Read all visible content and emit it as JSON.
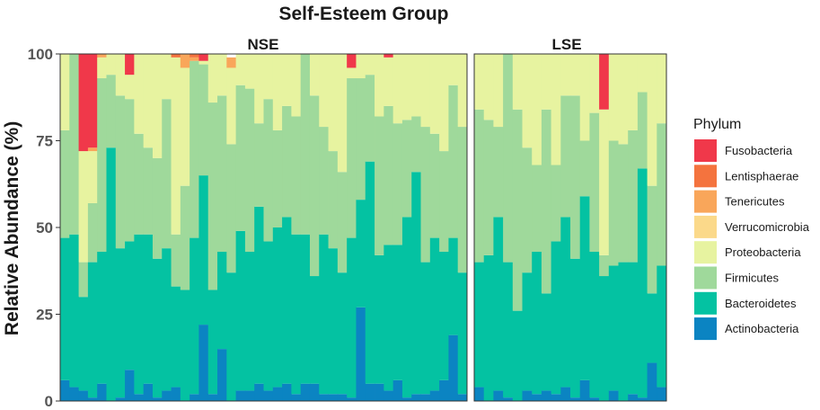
{
  "chart_data": {
    "type": "bar",
    "stacked": true,
    "title": "Self-Esteem Group",
    "ylabel": "Relative Abundance (%)",
    "xlabel": "",
    "ylim": [
      0,
      100
    ],
    "yticks": [
      0,
      25,
      50,
      75,
      100
    ],
    "grid": false,
    "legend_position": "right",
    "legend": {
      "title": "Phylum",
      "entries": [
        {
          "name": "Fusobacteria",
          "color": "#F0384A"
        },
        {
          "name": "Lentisphaerae",
          "color": "#F4733E"
        },
        {
          "name": "Tenericutes",
          "color": "#F9A65A"
        },
        {
          "name": "Verrucomicrobia",
          "color": "#FBD98A"
        },
        {
          "name": "Proteobacteria",
          "color": "#E7F3A0"
        },
        {
          "name": "Firmicutes",
          "color": "#9FD99B"
        },
        {
          "name": "Bacteroidetes",
          "color": "#04C2A2"
        },
        {
          "name": "Actinobacteria",
          "color": "#0B84C2"
        }
      ]
    },
    "stack_order_bottom_to_top": [
      "Actinobacteria",
      "Bacteroidetes",
      "Firmicutes",
      "Proteobacteria",
      "Verrucomicrobia",
      "Tenericutes",
      "Lentisphaerae",
      "Fusobacteria"
    ],
    "panels": [
      {
        "name": "NSE",
        "samples": [
          {
            "Actinobacteria": 6,
            "Bacteroidetes": 41,
            "Firmicutes": 31,
            "Proteobacteria": 22
          },
          {
            "Actinobacteria": 4,
            "Bacteroidetes": 44,
            "Firmicutes": 52,
            "Proteobacteria": 0
          },
          {
            "Actinobacteria": 3,
            "Bacteroidetes": 27,
            "Firmicutes": 10,
            "Proteobacteria": 32,
            "Fusobacteria": 28
          },
          {
            "Actinobacteria": 1,
            "Bacteroidetes": 39,
            "Firmicutes": 17,
            "Proteobacteria": 15,
            "Fusobacteria": 27,
            "Tenericutes": 1
          },
          {
            "Actinobacteria": 5,
            "Bacteroidetes": 38,
            "Firmicutes": 50,
            "Proteobacteria": 6,
            "Tenericutes": 1
          },
          {
            "Actinobacteria": 0,
            "Bacteroidetes": 73,
            "Firmicutes": 21,
            "Proteobacteria": 6
          },
          {
            "Actinobacteria": 1,
            "Bacteroidetes": 43,
            "Firmicutes": 44,
            "Proteobacteria": 12
          },
          {
            "Actinobacteria": 9,
            "Bacteroidetes": 37,
            "Firmicutes": 41,
            "Proteobacteria": 7,
            "Fusobacteria": 6
          },
          {
            "Actinobacteria": 2,
            "Bacteroidetes": 46,
            "Firmicutes": 29,
            "Proteobacteria": 23
          },
          {
            "Actinobacteria": 5,
            "Bacteroidetes": 43,
            "Firmicutes": 25,
            "Proteobacteria": 27
          },
          {
            "Actinobacteria": 1,
            "Bacteroidetes": 40,
            "Firmicutes": 29,
            "Proteobacteria": 30
          },
          {
            "Actinobacteria": 3,
            "Bacteroidetes": 41,
            "Firmicutes": 43,
            "Proteobacteria": 13
          },
          {
            "Actinobacteria": 4,
            "Bacteroidetes": 29,
            "Firmicutes": 15,
            "Proteobacteria": 51,
            "Lentisphaerae": 1
          },
          {
            "Actinobacteria": 0,
            "Bacteroidetes": 32,
            "Firmicutes": 30,
            "Proteobacteria": 34,
            "Tenericutes": 4
          },
          {
            "Actinobacteria": 2,
            "Bacteroidetes": 45,
            "Firmicutes": 51,
            "Proteobacteria": 0,
            "Tenericutes": 1,
            "Lentisphaerae": 1
          },
          {
            "Actinobacteria": 22,
            "Bacteroidetes": 43,
            "Firmicutes": 32,
            "Proteobacteria": 1,
            "Fusobacteria": 2
          },
          {
            "Actinobacteria": 2,
            "Bacteroidetes": 30,
            "Firmicutes": 54,
            "Proteobacteria": 14
          },
          {
            "Actinobacteria": 15,
            "Bacteroidetes": 28,
            "Firmicutes": 45,
            "Proteobacteria": 12
          },
          {
            "Actinobacteria": 0,
            "Bacteroidetes": 37,
            "Firmicutes": 37,
            "Proteobacteria": 22,
            "Tenericutes": 3
          },
          {
            "Actinobacteria": 3,
            "Bacteroidetes": 46,
            "Firmicutes": 42,
            "Proteobacteria": 9
          },
          {
            "Actinobacteria": 3,
            "Bacteroidetes": 40,
            "Firmicutes": 47,
            "Proteobacteria": 10
          },
          {
            "Actinobacteria": 5,
            "Bacteroidetes": 51,
            "Firmicutes": 24,
            "Proteobacteria": 20
          },
          {
            "Actinobacteria": 3,
            "Bacteroidetes": 43,
            "Firmicutes": 41,
            "Proteobacteria": 13
          },
          {
            "Actinobacteria": 4,
            "Bacteroidetes": 46,
            "Firmicutes": 28,
            "Proteobacteria": 22
          },
          {
            "Actinobacteria": 5,
            "Bacteroidetes": 48,
            "Firmicutes": 32,
            "Proteobacteria": 15
          },
          {
            "Actinobacteria": 2,
            "Bacteroidetes": 46,
            "Firmicutes": 34,
            "Proteobacteria": 18
          },
          {
            "Actinobacteria": 5,
            "Bacteroidetes": 43,
            "Firmicutes": 52,
            "Proteobacteria": 0
          },
          {
            "Actinobacteria": 5,
            "Bacteroidetes": 31,
            "Firmicutes": 52,
            "Proteobacteria": 12
          },
          {
            "Actinobacteria": 2,
            "Bacteroidetes": 46,
            "Firmicutes": 31,
            "Proteobacteria": 21
          },
          {
            "Actinobacteria": 2,
            "Bacteroidetes": 42,
            "Firmicutes": 28,
            "Proteobacteria": 28
          },
          {
            "Actinobacteria": 2,
            "Bacteroidetes": 35,
            "Firmicutes": 29,
            "Proteobacteria": 34
          },
          {
            "Actinobacteria": 1,
            "Bacteroidetes": 46,
            "Firmicutes": 46,
            "Proteobacteria": 3,
            "Fusobacteria": 4
          },
          {
            "Actinobacteria": 27,
            "Bacteroidetes": 31,
            "Firmicutes": 35,
            "Proteobacteria": 7
          },
          {
            "Actinobacteria": 5,
            "Bacteroidetes": 64,
            "Firmicutes": 25,
            "Proteobacteria": 6
          },
          {
            "Actinobacteria": 5,
            "Bacteroidetes": 37,
            "Firmicutes": 40,
            "Proteobacteria": 18
          },
          {
            "Actinobacteria": 3,
            "Bacteroidetes": 42,
            "Firmicutes": 40,
            "Proteobacteria": 14,
            "Fusobacteria": 1
          },
          {
            "Actinobacteria": 6,
            "Bacteroidetes": 39,
            "Firmicutes": 35,
            "Proteobacteria": 20
          },
          {
            "Actinobacteria": 1,
            "Bacteroidetes": 52,
            "Firmicutes": 28,
            "Proteobacteria": 19
          },
          {
            "Actinobacteria": 2,
            "Bacteroidetes": 64,
            "Firmicutes": 16,
            "Proteobacteria": 18
          },
          {
            "Actinobacteria": 2,
            "Bacteroidetes": 38,
            "Firmicutes": 39,
            "Proteobacteria": 21
          },
          {
            "Actinobacteria": 3,
            "Bacteroidetes": 44,
            "Firmicutes": 30,
            "Proteobacteria": 23
          },
          {
            "Actinobacteria": 6,
            "Bacteroidetes": 37,
            "Firmicutes": 29,
            "Proteobacteria": 28
          },
          {
            "Actinobacteria": 19,
            "Bacteroidetes": 28,
            "Firmicutes": 44,
            "Proteobacteria": 9
          },
          {
            "Actinobacteria": 2,
            "Bacteroidetes": 35,
            "Firmicutes": 42,
            "Proteobacteria": 21
          }
        ]
      },
      {
        "name": "LSE",
        "samples": [
          {
            "Actinobacteria": 4,
            "Bacteroidetes": 36,
            "Firmicutes": 44,
            "Proteobacteria": 16
          },
          {
            "Actinobacteria": 0,
            "Bacteroidetes": 42,
            "Firmicutes": 39,
            "Proteobacteria": 19
          },
          {
            "Actinobacteria": 3,
            "Bacteroidetes": 50,
            "Firmicutes": 26,
            "Proteobacteria": 21
          },
          {
            "Actinobacteria": 1,
            "Bacteroidetes": 39,
            "Firmicutes": 60,
            "Proteobacteria": 0
          },
          {
            "Actinobacteria": 0,
            "Bacteroidetes": 26,
            "Firmicutes": 58,
            "Proteobacteria": 16
          },
          {
            "Actinobacteria": 3,
            "Bacteroidetes": 34,
            "Firmicutes": 36,
            "Proteobacteria": 27
          },
          {
            "Actinobacteria": 2,
            "Bacteroidetes": 41,
            "Firmicutes": 25,
            "Proteobacteria": 32
          },
          {
            "Actinobacteria": 3,
            "Bacteroidetes": 28,
            "Firmicutes": 53,
            "Proteobacteria": 16
          },
          {
            "Actinobacteria": 2,
            "Bacteroidetes": 44,
            "Firmicutes": 22,
            "Proteobacteria": 32
          },
          {
            "Actinobacteria": 4,
            "Bacteroidetes": 49,
            "Firmicutes": 35,
            "Proteobacteria": 12
          },
          {
            "Actinobacteria": 1,
            "Bacteroidetes": 40,
            "Firmicutes": 47,
            "Proteobacteria": 12
          },
          {
            "Actinobacteria": 6,
            "Bacteroidetes": 53,
            "Firmicutes": 16,
            "Proteobacteria": 25
          },
          {
            "Actinobacteria": 1,
            "Bacteroidetes": 42,
            "Firmicutes": 40,
            "Proteobacteria": 17
          },
          {
            "Actinobacteria": 0,
            "Bacteroidetes": 36,
            "Firmicutes": 6,
            "Proteobacteria": 42,
            "Fusobacteria": 16
          },
          {
            "Actinobacteria": 3,
            "Bacteroidetes": 36,
            "Firmicutes": 36,
            "Proteobacteria": 25
          },
          {
            "Actinobacteria": 0,
            "Bacteroidetes": 40,
            "Firmicutes": 34,
            "Proteobacteria": 26
          },
          {
            "Actinobacteria": 2,
            "Bacteroidetes": 38,
            "Firmicutes": 38,
            "Proteobacteria": 22
          },
          {
            "Actinobacteria": 1,
            "Bacteroidetes": 66,
            "Firmicutes": 22,
            "Proteobacteria": 11
          },
          {
            "Actinobacteria": 11,
            "Bacteroidetes": 20,
            "Firmicutes": 31,
            "Proteobacteria": 38
          },
          {
            "Actinobacteria": 4,
            "Bacteroidetes": 35,
            "Firmicutes": 41,
            "Proteobacteria": 20
          }
        ]
      }
    ]
  }
}
